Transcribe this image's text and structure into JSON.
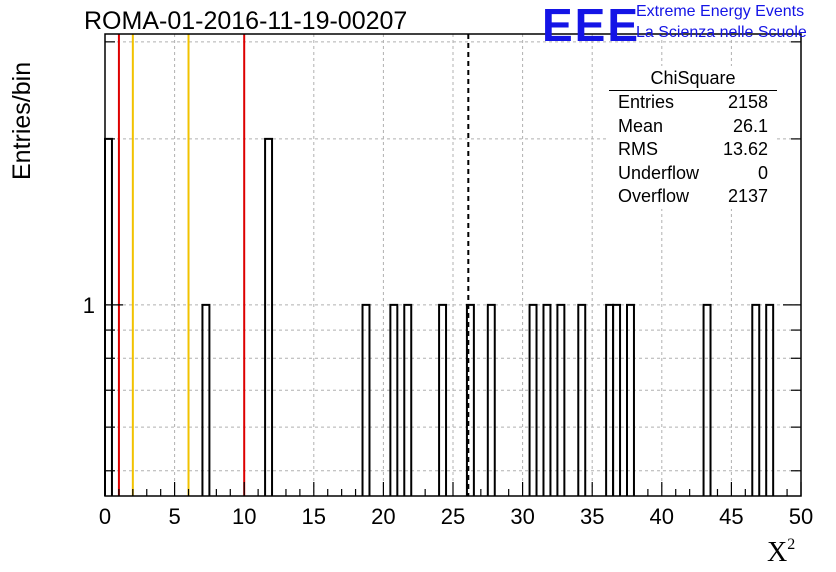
{
  "header": {
    "title": "ROMA-01-2016-11-19-00207"
  },
  "logo": {
    "mark": "EEE",
    "line1": "Extreme Energy Events",
    "line2": "La Scienza nelle Scuole"
  },
  "stats_box": {
    "title": "ChiSquare",
    "rows": [
      {
        "label": "Entries",
        "value": "2158"
      },
      {
        "label": "Mean",
        "value": "26.1"
      },
      {
        "label": "RMS",
        "value": "13.62"
      },
      {
        "label": "Underflow",
        "value": "0"
      },
      {
        "label": "Overflow",
        "value": "2137"
      }
    ]
  },
  "colors": {
    "red_line": "#dd0000",
    "yellow_line": "#f2c200",
    "logo_blue": "#1414e6",
    "grid": "#b0b0b0"
  },
  "chart_data": {
    "type": "bar",
    "histogram_name": "ChiSquare",
    "xlabel": "X",
    "xlabel_superscript": "2",
    "ylabel": "Entries/bin",
    "xlim": [
      0,
      50
    ],
    "y_scale": "log",
    "ylim": [
      0.45,
      3.1
    ],
    "x_ticks": [
      0,
      5,
      10,
      15,
      20,
      25,
      30,
      35,
      40,
      45,
      50
    ],
    "y_tick_labels": [
      {
        "value": 1,
        "label": "1"
      }
    ],
    "bin_width": 0.5,
    "bins": [
      {
        "x": 0.0,
        "count": 2
      },
      {
        "x": 7.0,
        "count": 1
      },
      {
        "x": 11.5,
        "count": 2
      },
      {
        "x": 18.5,
        "count": 1
      },
      {
        "x": 20.5,
        "count": 1
      },
      {
        "x": 21.5,
        "count": 1
      },
      {
        "x": 24.0,
        "count": 1
      },
      {
        "x": 26.0,
        "count": 1
      },
      {
        "x": 27.5,
        "count": 1
      },
      {
        "x": 30.5,
        "count": 1
      },
      {
        "x": 31.5,
        "count": 1
      },
      {
        "x": 32.5,
        "count": 1
      },
      {
        "x": 34.0,
        "count": 1
      },
      {
        "x": 36.0,
        "count": 1
      },
      {
        "x": 36.5,
        "count": 1
      },
      {
        "x": 37.5,
        "count": 1
      },
      {
        "x": 43.0,
        "count": 1
      },
      {
        "x": 46.5,
        "count": 1
      },
      {
        "x": 47.5,
        "count": 1
      }
    ],
    "vertical_lines": [
      {
        "x": 1,
        "color": "red"
      },
      {
        "x": 2,
        "color": "yellow"
      },
      {
        "x": 6,
        "color": "yellow"
      },
      {
        "x": 10,
        "color": "red"
      },
      {
        "x": 26.1,
        "color": "black",
        "style": "dashed"
      }
    ],
    "grid": true
  }
}
